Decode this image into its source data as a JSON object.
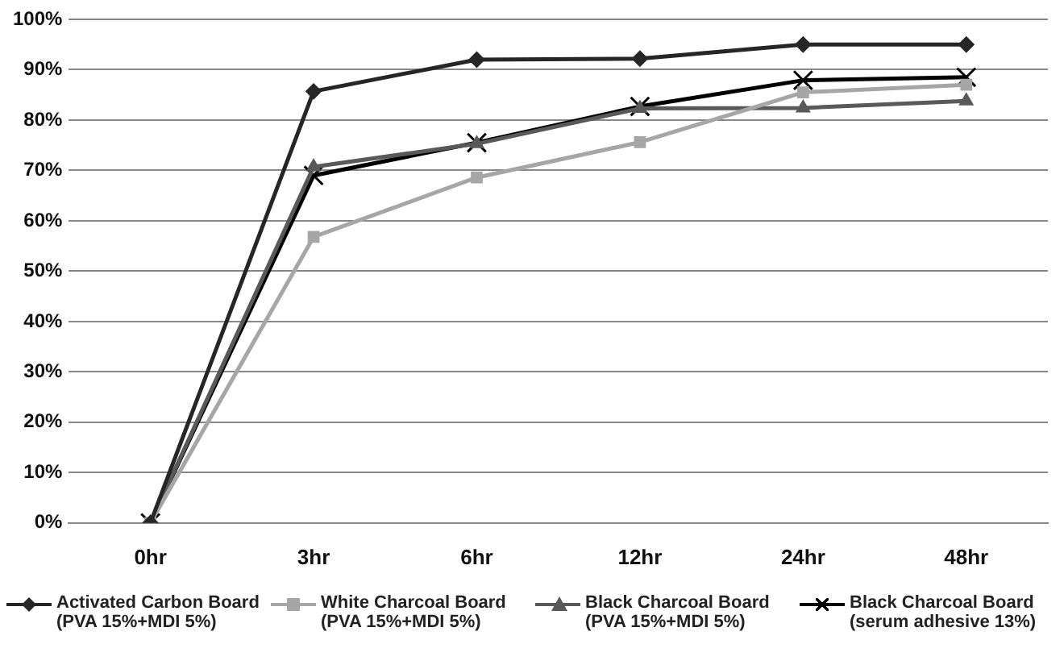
{
  "chart_data": {
    "type": "line",
    "categories": [
      "0hr",
      "3hr",
      "6hr",
      "12hr",
      "24hr",
      "48hr"
    ],
    "ylim": [
      0,
      100
    ],
    "yticks": [
      {
        "value": 0,
        "label": "0%"
      },
      {
        "value": 10,
        "label": "10%"
      },
      {
        "value": 20,
        "label": "20%"
      },
      {
        "value": 30,
        "label": "30%"
      },
      {
        "value": 40,
        "label": "40%"
      },
      {
        "value": 50,
        "label": "50%"
      },
      {
        "value": 60,
        "label": "60%"
      },
      {
        "value": 70,
        "label": "70%"
      },
      {
        "value": 80,
        "label": "80%"
      },
      {
        "value": 90,
        "label": "90%"
      },
      {
        "value": 100,
        "label": "100%"
      }
    ],
    "grid": "y",
    "legend": "bottom",
    "line_style": "solid",
    "series": [
      {
        "name": "Activated Carbon Board (PVA 15%+MDI 5%)",
        "color": "#262626",
        "marker": "diamond",
        "values": [
          0,
          85.7,
          92,
          92.2,
          95,
          95
        ]
      },
      {
        "name": "White Charcoal Board (PVA 15%+MDI 5%)",
        "color": "#a6a6a6",
        "marker": "square",
        "values": [
          0,
          56.8,
          68.6,
          75.6,
          85.5,
          87
        ]
      },
      {
        "name": "Black Charcoal Board (PVA 15%+MDI 5%)",
        "color": "#595959",
        "marker": "triangle",
        "values": [
          0,
          70.7,
          75.3,
          82.3,
          82.4,
          83.8
        ]
      },
      {
        "name": "Black Charcoal Board (serum adhesive 13%)",
        "color": "#000000",
        "marker": "cross",
        "values": [
          0,
          69,
          75.5,
          82.7,
          87.9,
          88.5
        ]
      }
    ]
  }
}
